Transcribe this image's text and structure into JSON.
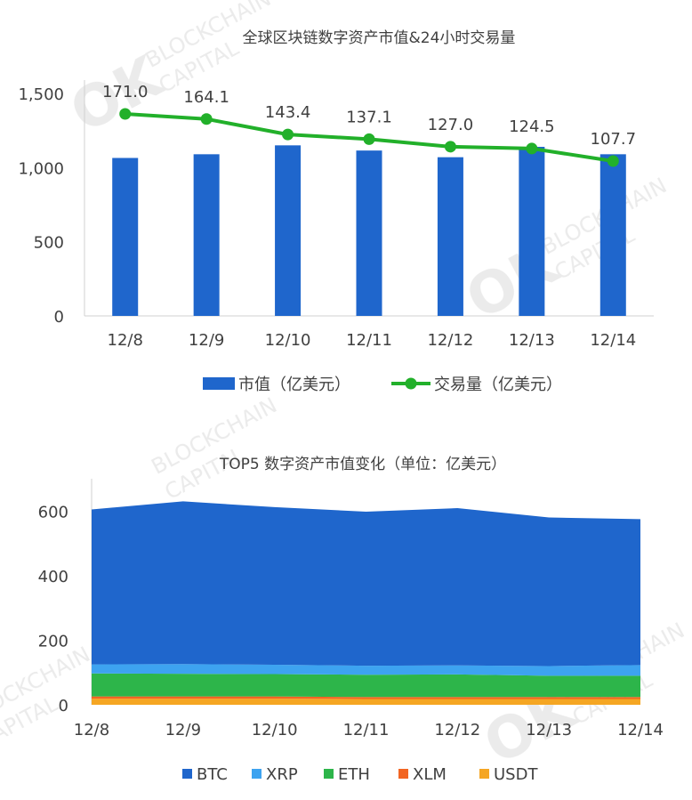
{
  "watermark": {
    "logo": "OK",
    "line1": "BLOCKCHAIN",
    "line2": "CAPITAL"
  },
  "chart_data": [
    {
      "type": "bar+line",
      "title": "全球区块链数字资产市值&24小时交易量",
      "categories": [
        "12/8",
        "12/9",
        "12/10",
        "12/11",
        "12/12",
        "12/13",
        "12/14"
      ],
      "y_ticks": [
        "0",
        "500",
        "1,000",
        "1,500"
      ],
      "ylim": [
        0,
        1500
      ],
      "series": [
        {
          "name": "市值（亿美元）",
          "type": "bar",
          "color": "#1F66CC",
          "values": [
            1065,
            1090,
            1150,
            1115,
            1070,
            1140,
            1090
          ]
        },
        {
          "name": "交易量（亿美元）",
          "type": "line",
          "color": "#22B02A",
          "values": [
            171.0,
            164.1,
            143.4,
            137.1,
            127.0,
            124.5,
            107.7
          ],
          "labels": [
            "171.0",
            "164.1",
            "143.4",
            "137.1",
            "127.0",
            "124.5",
            "107.7"
          ]
        }
      ],
      "legend_position": "bottom",
      "grid": false
    },
    {
      "type": "area",
      "stacked": true,
      "title": "TOP5 数字资产市值变化（单位：亿美元）",
      "categories": [
        "12/8",
        "12/9",
        "12/10",
        "12/11",
        "12/12",
        "12/13",
        "12/14"
      ],
      "y_ticks": [
        "0",
        "200",
        "400",
        "600"
      ],
      "ylim": [
        0,
        700
      ],
      "series": [
        {
          "name": "USDT",
          "color": "#F5A623",
          "values": [
            19,
            19,
            19,
            18,
            18,
            18,
            18
          ]
        },
        {
          "name": "XLM",
          "color": "#F26522",
          "values": [
            7,
            7,
            7,
            6,
            6,
            6,
            6
          ]
        },
        {
          "name": "ETH",
          "color": "#2DB54A",
          "values": [
            71,
            70,
            69,
            69,
            70,
            66,
            66
          ]
        },
        {
          "name": "XRP",
          "color": "#3DA3F0",
          "values": [
            28,
            30,
            29,
            28,
            28,
            30,
            33
          ]
        },
        {
          "name": "BTC",
          "color": "#1F66CC",
          "values": [
            480,
            504,
            488,
            477,
            487,
            460,
            452
          ]
        }
      ],
      "legend_order": [
        "BTC",
        "XRP",
        "ETH",
        "XLM",
        "USDT"
      ],
      "legend_position": "bottom",
      "grid": false
    }
  ]
}
